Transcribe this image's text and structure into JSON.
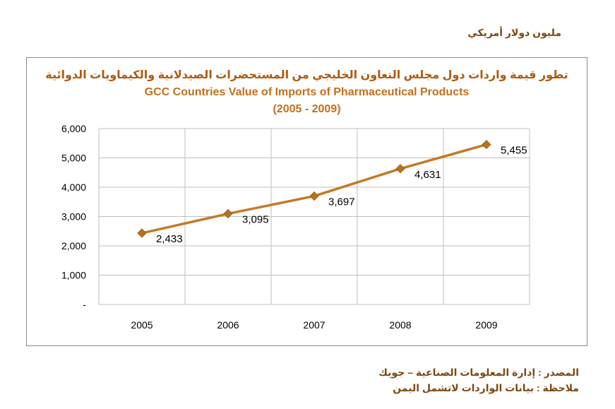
{
  "unit_label": "مليون دولار أمريكي",
  "footer": {
    "source": "المصدر : إدارة المعلومات الصناعية – جويك",
    "note": "ملاحظة : بيانات الواردات لاتشمل اليمن"
  },
  "colors": {
    "line": "#c47a26",
    "marker": "#b8731f",
    "grid": "#bfbfbf",
    "frame": "#8a8a8a"
  },
  "chart_data": {
    "type": "line",
    "title": "تطور قيمة واردات دول مجلس التعاون الخليجي من المستحضرات الصيدلانية والكيماويات الدوائية",
    "title_en": "GCC Countries Value of Imports of Pharmaceutical Products",
    "subtitle": "(2005 - 2009)",
    "categories": [
      "2005",
      "2006",
      "2007",
      "2008",
      "2009"
    ],
    "series": [
      {
        "values": [
          2433,
          3095,
          3697,
          4631,
          5455
        ],
        "data_labels": [
          "2,433",
          "3,095",
          "3,697",
          "4,631",
          "5,455"
        ]
      }
    ],
    "y_ticks": [
      "-",
      "1,000",
      "2,000",
      "3,000",
      "4,000",
      "5,000",
      "6,000"
    ],
    "ylim": [
      0,
      6000
    ],
    "grid": true,
    "legend": "none",
    "marker": "diamond"
  }
}
